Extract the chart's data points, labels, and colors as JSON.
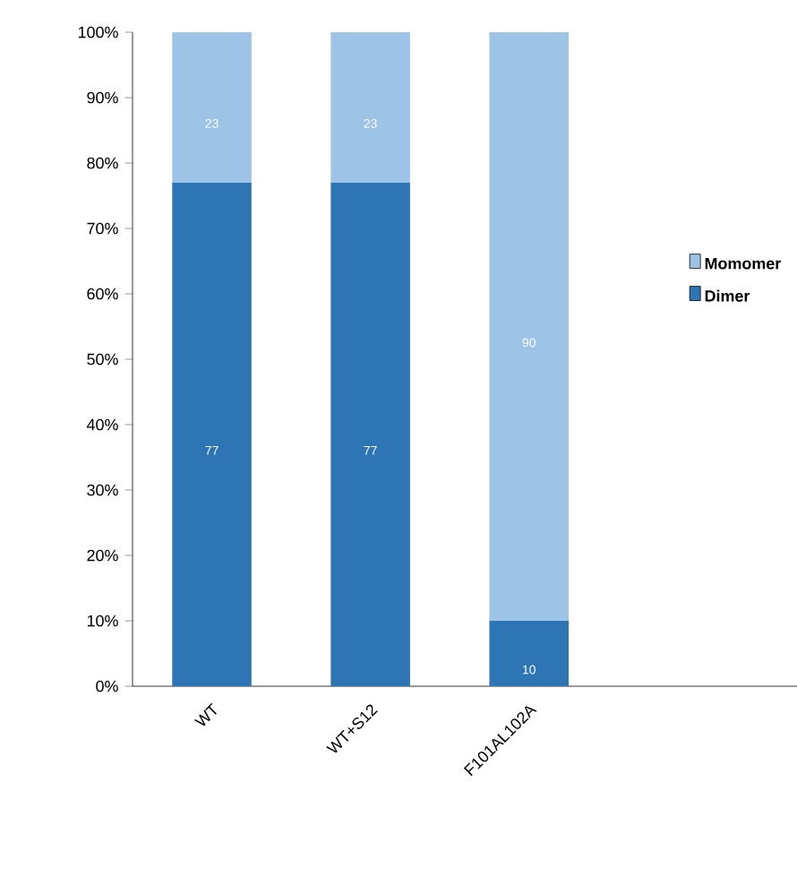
{
  "chart_data": {
    "type": "bar",
    "stacked": true,
    "categories": [
      "WT",
      "WT+S12",
      "F101AL102A"
    ],
    "series": [
      {
        "name": "Dimer",
        "color": "#2e75b6",
        "values": [
          77,
          77,
          10
        ]
      },
      {
        "name": "Momomer",
        "color": "#9dc3e6",
        "values": [
          23,
          23,
          90
        ]
      }
    ],
    "ylim": [
      0,
      100
    ],
    "yticks": [
      {
        "value": 0,
        "label": "0%"
      },
      {
        "value": 10,
        "label": "10%"
      },
      {
        "value": 20,
        "label": "20%"
      },
      {
        "value": 30,
        "label": "30%"
      },
      {
        "value": 40,
        "label": "40%"
      },
      {
        "value": 50,
        "label": "50%"
      },
      {
        "value": 60,
        "label": "60%"
      },
      {
        "value": 70,
        "label": "70%"
      },
      {
        "value": 80,
        "label": "80%"
      },
      {
        "value": 90,
        "label": "90%"
      },
      {
        "value": 100,
        "label": "100%"
      }
    ],
    "data_labels": true,
    "legend": "right",
    "grid": false
  }
}
